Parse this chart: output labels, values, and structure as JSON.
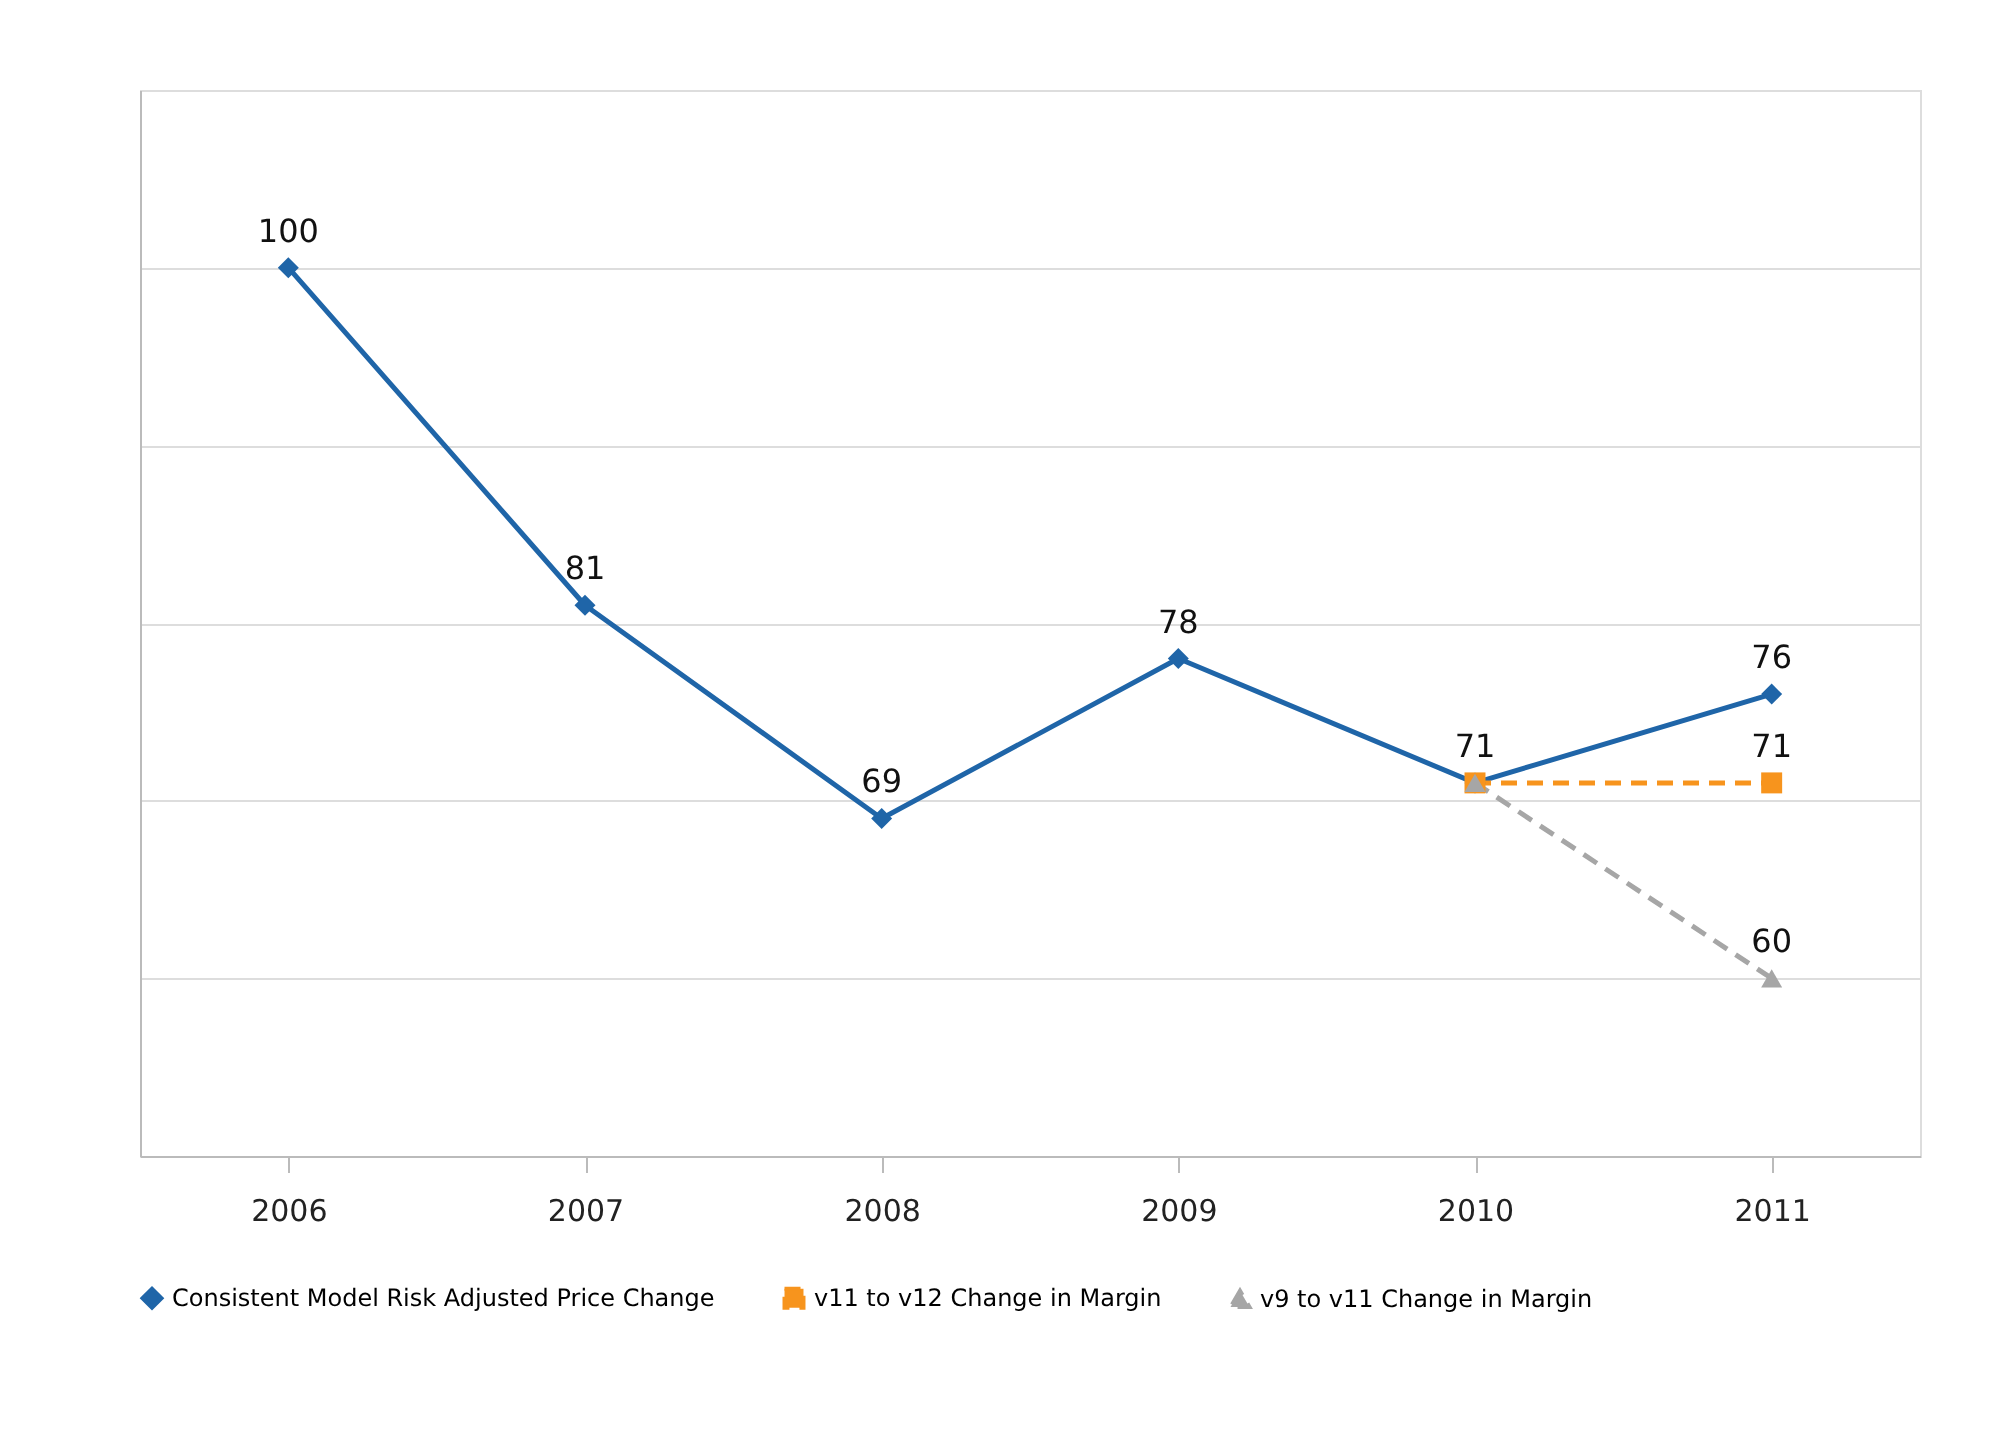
{
  "chart_data": {
    "type": "line",
    "categories": [
      "2006",
      "2007",
      "2008",
      "2009",
      "2010",
      "2011"
    ],
    "series": [
      {
        "name": "Consistent Model Risk Adjusted Price Change",
        "color": "#1f65a8",
        "marker": "diamond",
        "line_style": "solid",
        "values": [
          100,
          81,
          69,
          78,
          71,
          76
        ],
        "value_labels": [
          "100",
          "81",
          "69",
          "78",
          "71",
          "76"
        ]
      },
      {
        "name": "v11 to v12 Change in Margin",
        "color": "#f7941d",
        "marker": "square",
        "line_style": "dashed",
        "values": [
          null,
          null,
          null,
          null,
          71,
          71
        ],
        "value_labels": [
          null,
          null,
          null,
          null,
          null,
          "71"
        ]
      },
      {
        "name": "v9 to v11 Change in Margin",
        "color": "#a6a6a6",
        "marker": "triangle",
        "line_style": "dashed",
        "values": [
          null,
          null,
          null,
          null,
          71,
          60
        ],
        "value_labels": [
          null,
          null,
          null,
          null,
          null,
          "60"
        ]
      }
    ],
    "ylim": [
      50,
      110
    ],
    "yticks": [
      {
        "value": 50,
        "label": null
      },
      {
        "value": 60,
        "label": null
      },
      {
        "value": 70,
        "label": null
      },
      {
        "value": 80,
        "label": null
      },
      {
        "value": 90,
        "label": null
      },
      {
        "value": 100,
        "label": null
      },
      {
        "value": 110,
        "label": null
      }
    ],
    "grid": "y",
    "tick_labels": "x",
    "legend": "bottom"
  }
}
